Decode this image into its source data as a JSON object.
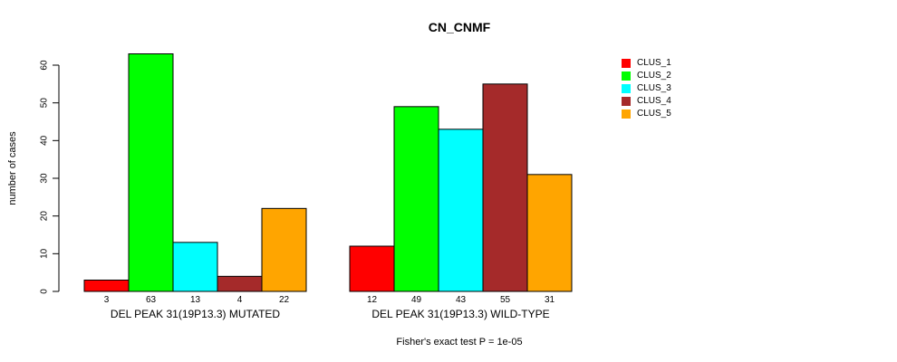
{
  "chart_data": {
    "type": "bar",
    "title": "CN_CNMF",
    "ylabel": "number of cases",
    "ylim": [
      0,
      60
    ],
    "yticks": [
      0,
      10,
      20,
      30,
      40,
      50,
      60
    ],
    "grid": false,
    "legend_position": "right-outside",
    "series_labels": [
      "CLUS_1",
      "CLUS_2",
      "CLUS_3",
      "CLUS_4",
      "CLUS_5"
    ],
    "series_colors": [
      "#FF0000",
      "#00FF00",
      "#00FFFF",
      "#A52A2A",
      "#FFA500"
    ],
    "bar_border_color": "#000000",
    "groups": [
      {
        "label": "DEL PEAK 31(19P13.3) MUTATED",
        "values": [
          3,
          63,
          13,
          4,
          22
        ]
      },
      {
        "label": "DEL PEAK 31(19P13.3) WILD-TYPE",
        "values": [
          12,
          49,
          43,
          55,
          31
        ]
      }
    ],
    "footnote": "Fisher's exact test P = 1e-05"
  }
}
